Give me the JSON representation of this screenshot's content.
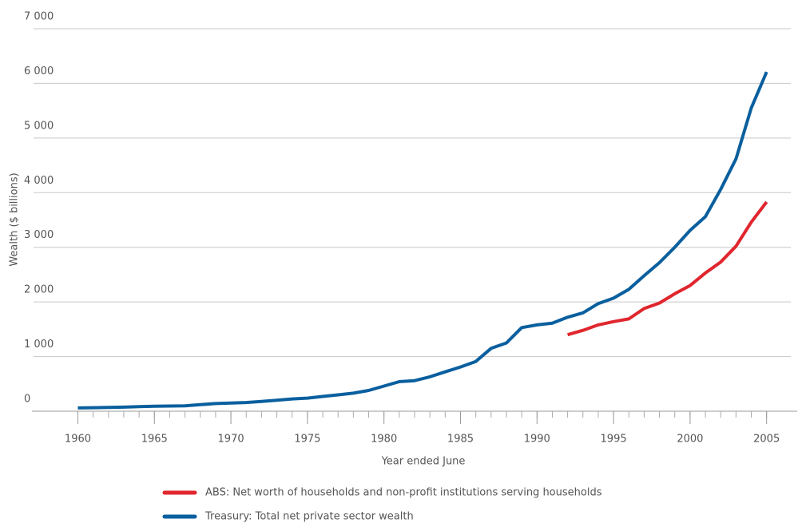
{
  "chart_data": {
    "type": "line",
    "y_label": "Wealth ($ billions)",
    "x_label": "Year ended June",
    "x": [
      1960,
      1961,
      1962,
      1963,
      1964,
      1965,
      1966,
      1967,
      1968,
      1969,
      1970,
      1971,
      1972,
      1973,
      1974,
      1975,
      1976,
      1977,
      1978,
      1979,
      1980,
      1981,
      1982,
      1983,
      1984,
      1985,
      1986,
      1987,
      1988,
      1989,
      1990,
      1991,
      1992,
      1993,
      1994,
      1995,
      1996,
      1997,
      1998,
      1999,
      2000,
      2001,
      2002,
      2003,
      2004,
      2005
    ],
    "series": [
      {
        "name": "ABS: Net worth of households and non-profit institutions serving households",
        "color": "#e0262e",
        "values": [
          null,
          null,
          null,
          null,
          null,
          null,
          null,
          null,
          null,
          null,
          null,
          null,
          null,
          null,
          null,
          null,
          null,
          null,
          null,
          null,
          null,
          null,
          null,
          null,
          null,
          null,
          null,
          null,
          null,
          null,
          null,
          null,
          1400,
          1480,
          1580,
          1640,
          1690,
          1880,
          1980,
          2150,
          2300,
          2530,
          2730,
          3020,
          3460,
          3830
        ]
      },
      {
        "name": "Treasury: Total net private sector wealth",
        "color": "#0a5f9e",
        "values": [
          60,
          65,
          70,
          75,
          85,
          90,
          95,
          100,
          120,
          140,
          150,
          160,
          180,
          200,
          225,
          240,
          270,
          300,
          330,
          380,
          460,
          540,
          560,
          630,
          720,
          810,
          910,
          1150,
          1250,
          1530,
          1580,
          1610,
          1720,
          1800,
          1970,
          2070,
          2230,
          2480,
          2720,
          3000,
          3310,
          3560,
          4060,
          4620,
          5550,
          6210
        ]
      }
    ],
    "xlim": [
      1957,
      2007
    ],
    "xticks": [
      1960,
      1965,
      1970,
      1975,
      1980,
      1985,
      1990,
      1995,
      2000,
      2005
    ],
    "ylim": [
      0,
      7000
    ],
    "yticks": [
      0,
      {
        "value": 1000,
        "label": "1 000"
      },
      {
        "value": 2000,
        "label": "2 000"
      },
      {
        "value": 3000,
        "label": "3 000"
      },
      {
        "value": 4000,
        "label": "4 000"
      },
      {
        "value": 5000,
        "label": "5 000"
      },
      {
        "value": 6000,
        "label": "6 000"
      },
      {
        "value": 7000,
        "label": "7 000"
      }
    ],
    "grid": true
  }
}
